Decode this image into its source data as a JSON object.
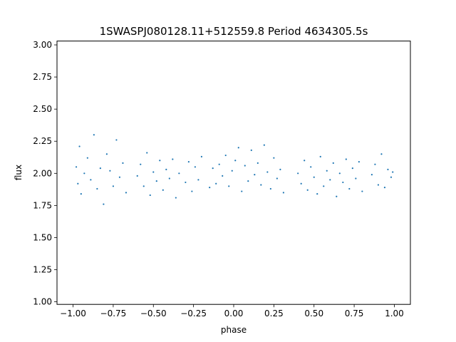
{
  "chart_data": {
    "type": "scatter",
    "title": "1SWASPJ080128.11+512559.8 Period 4634305.5s",
    "xlabel": "phase",
    "ylabel": "flux",
    "xlim": [
      -1.1,
      1.1
    ],
    "ylim": [
      0.98,
      3.03
    ],
    "x_ticks": [
      -1.0,
      -0.75,
      -0.5,
      -0.25,
      0.0,
      0.25,
      0.5,
      0.75,
      1.0
    ],
    "x_tick_labels": [
      "−1.00",
      "−0.75",
      "−0.50",
      "−0.25",
      "0.00",
      "0.25",
      "0.50",
      "0.75",
      "1.00"
    ],
    "y_ticks": [
      1.0,
      1.25,
      1.5,
      1.75,
      2.0,
      2.25,
      2.5,
      2.75,
      3.0
    ],
    "y_tick_labels": [
      "1.00",
      "1.25",
      "1.50",
      "1.75",
      "2.00",
      "2.25",
      "2.50",
      "2.75",
      "3.00"
    ],
    "grid": false,
    "legend": "none",
    "marker_color": "#1f77b4",
    "series": [
      {
        "x": [
          -0.98,
          -0.97,
          -0.96,
          -0.95,
          -0.93,
          -0.91,
          -0.89,
          -0.87,
          -0.85,
          -0.83,
          -0.81,
          -0.79,
          -0.77,
          -0.75,
          -0.73,
          -0.71,
          -0.69,
          -0.67,
          -0.6,
          -0.58,
          -0.56,
          -0.54,
          -0.52,
          -0.5,
          -0.48,
          -0.46,
          -0.44,
          -0.42,
          -0.4,
          -0.38,
          -0.36,
          -0.34,
          -0.3,
          -0.28,
          -0.26,
          -0.24,
          -0.22,
          -0.2,
          -0.15,
          -0.13,
          -0.11,
          -0.09,
          -0.07,
          -0.05,
          -0.03,
          -0.01,
          0.01,
          0.03,
          0.05,
          0.07,
          0.09,
          0.11,
          0.13,
          0.15,
          0.17,
          0.19,
          0.21,
          0.23,
          0.25,
          0.27,
          0.29,
          0.31,
          0.4,
          0.42,
          0.44,
          0.46,
          0.48,
          0.5,
          0.52,
          0.54,
          0.56,
          0.58,
          0.6,
          0.62,
          0.64,
          0.66,
          0.68,
          0.7,
          0.72,
          0.74,
          0.76,
          0.78,
          0.8,
          0.86,
          0.88,
          0.9,
          0.92,
          0.94,
          0.96,
          0.98,
          0.99
        ],
        "y": [
          2.05,
          1.92,
          2.21,
          1.84,
          2.0,
          2.12,
          1.95,
          2.3,
          1.88,
          2.04,
          1.76,
          2.15,
          2.02,
          1.9,
          2.26,
          1.97,
          2.08,
          1.85,
          1.98,
          2.07,
          1.9,
          2.16,
          1.83,
          2.01,
          1.94,
          2.1,
          1.87,
          2.03,
          1.96,
          2.11,
          1.81,
          2.0,
          1.93,
          2.09,
          1.86,
          2.05,
          1.95,
          2.13,
          1.89,
          2.04,
          1.92,
          2.07,
          1.98,
          2.14,
          1.9,
          2.02,
          2.1,
          2.2,
          1.86,
          2.06,
          1.94,
          2.18,
          1.99,
          2.08,
          1.91,
          2.22,
          2.01,
          1.88,
          2.12,
          1.96,
          2.03,
          1.85,
          2.0,
          1.92,
          2.1,
          1.87,
          2.05,
          1.97,
          1.84,
          2.13,
          1.9,
          2.02,
          1.95,
          2.08,
          1.82,
          2.0,
          1.93,
          2.11,
          1.88,
          2.04,
          1.96,
          2.09,
          1.86,
          1.99,
          2.07,
          1.91,
          2.15,
          1.89,
          2.03,
          1.97,
          2.01
        ]
      }
    ]
  }
}
